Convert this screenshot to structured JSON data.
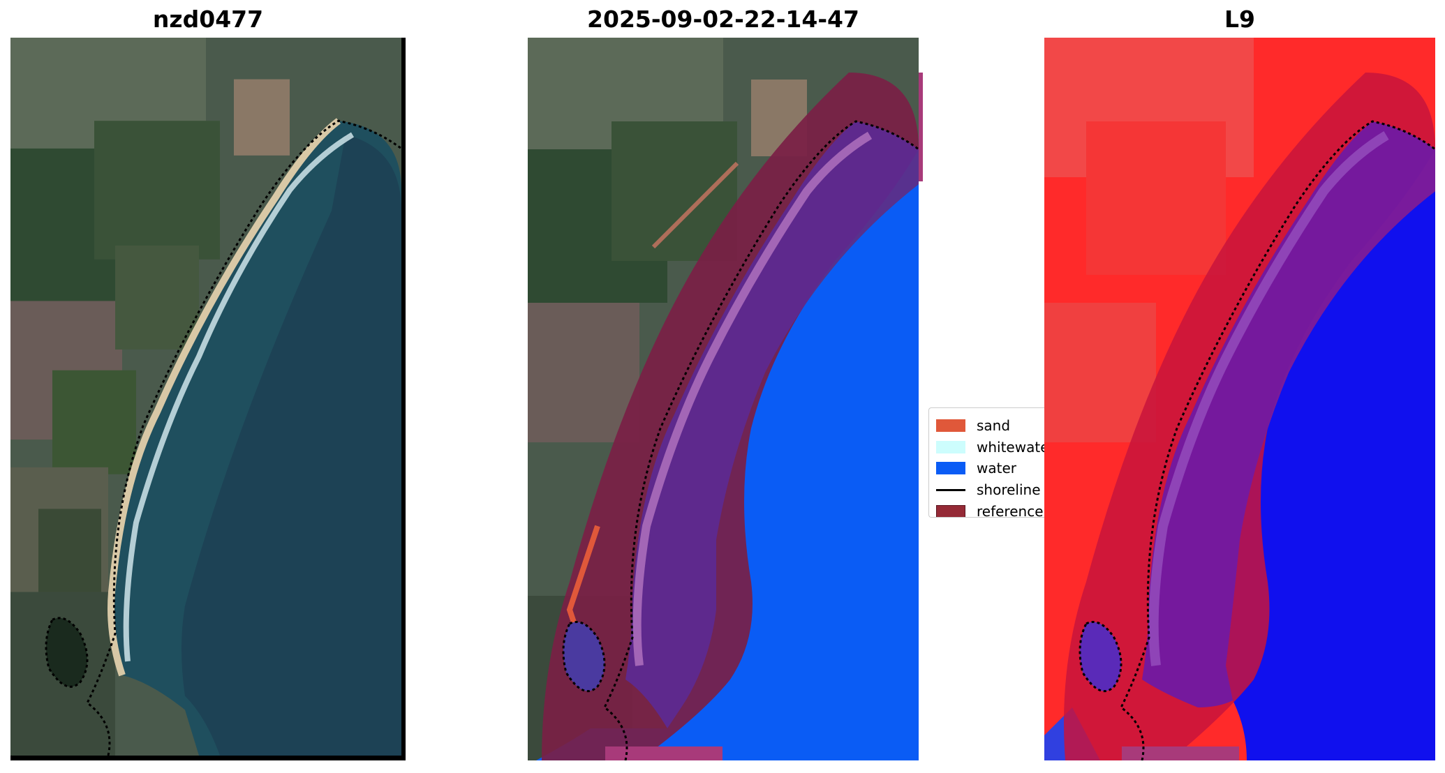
{
  "titles": {
    "panel_1": "nzd0477",
    "panel_2": "2025-09-02-22-14-47",
    "panel_3": "L9"
  },
  "legend": {
    "items": [
      {
        "label": "sand",
        "color": "#e0583a",
        "kind": "patch"
      },
      {
        "label": "whitewater",
        "color": "#cdfdfd",
        "kind": "patch"
      },
      {
        "label": "water",
        "color": "#0a5cf5",
        "kind": "patch"
      },
      {
        "label": "shoreline",
        "color": "#000000",
        "kind": "line"
      },
      {
        "label": "reference",
        "color": "#952a36",
        "kind": "patch"
      }
    ]
  },
  "colors": {
    "reference_band": "#7a1f45",
    "water_class": "#0a5cf5",
    "land_index": "#ff2a2a",
    "water_index": "#1010ee"
  }
}
